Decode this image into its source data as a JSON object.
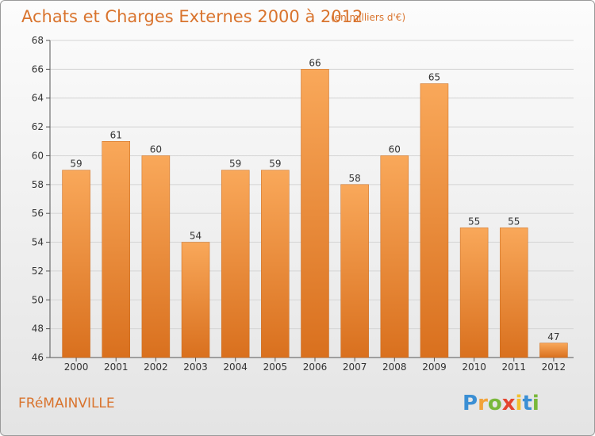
{
  "chart_data": {
    "type": "bar",
    "title": "Achats et Charges Externes 2000 à 2012",
    "subtitle": "(en milliers d'€)",
    "categories": [
      "2000",
      "2001",
      "2002",
      "2003",
      "2004",
      "2005",
      "2006",
      "2007",
      "2008",
      "2009",
      "2010",
      "2011",
      "2012"
    ],
    "values": [
      59,
      61,
      60,
      54,
      59,
      59,
      66,
      58,
      60,
      65,
      55,
      55,
      47
    ],
    "ylim": [
      46,
      68
    ],
    "yticks": [
      46,
      48,
      50,
      52,
      54,
      56,
      58,
      60,
      62,
      64,
      66,
      68
    ],
    "xlabel": "",
    "ylabel": "",
    "grid": true,
    "bar_color": "#f0923a",
    "bar_color_light": "#f9a85a",
    "bar_color_dark": "#d9701e"
  },
  "location": "FRéMAINVILLE",
  "brand": {
    "letters": [
      "P",
      "r",
      "o",
      "x",
      "i",
      "t",
      "i"
    ],
    "colors": [
      "#3b8fd4",
      "#f2a33a",
      "#79b83a",
      "#e4452f",
      "#f2c12e",
      "#3b8fd4",
      "#79b83a"
    ]
  }
}
